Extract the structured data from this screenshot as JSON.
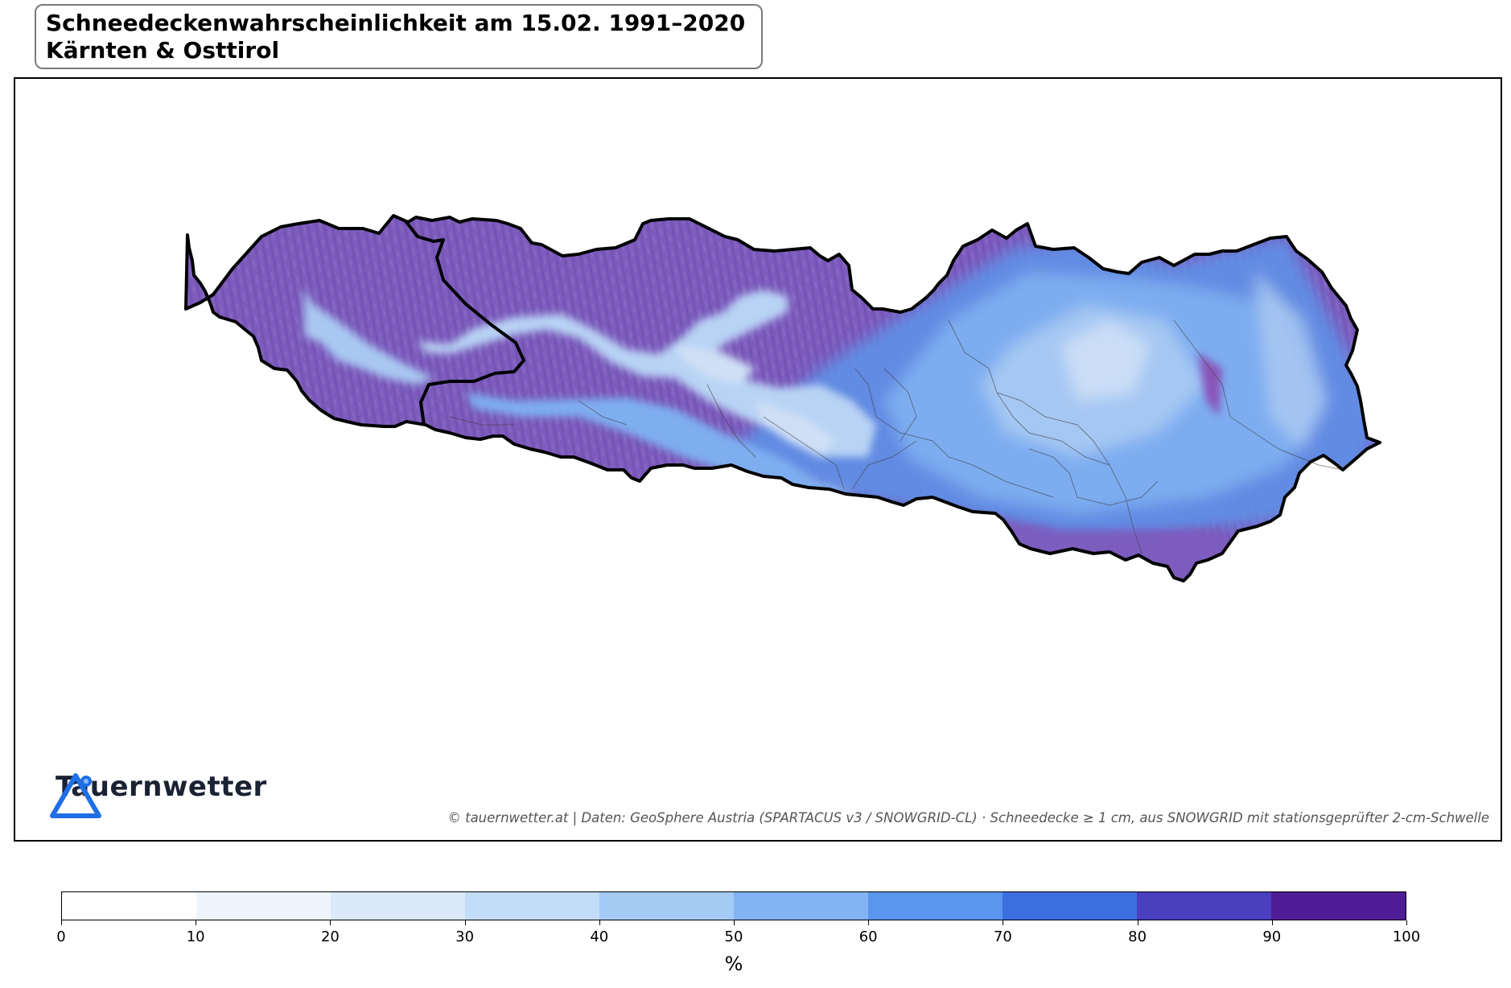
{
  "title": {
    "line1": "Schneedeckenwahrscheinlichkeit am 15.02. 1991–2020",
    "line2": "Kärnten & Osttirol"
  },
  "logo": {
    "text": "Tauernwetter",
    "icon": "triangle-pin-icon",
    "color": "#1f6fe6"
  },
  "credit": "© tauernwetter.at | Daten: GeoSphere Austria (SPARTACUS v3 / SNOWGRID-CL) · Schneedecke ≥ 1 cm, aus SNOWGRID mit stationsgeprüfter 2-cm-Schwelle",
  "colorbar": {
    "unit_label": "%",
    "ticks": [
      "0",
      "10",
      "20",
      "30",
      "40",
      "50",
      "60",
      "70",
      "80",
      "90",
      "100"
    ],
    "colors": [
      "#ffffff",
      "#eef5fd",
      "#dce9f9",
      "#c3dcf7",
      "#a5cbf5",
      "#83b3f2",
      "#5b96ee",
      "#3b6fe0",
      "#4a3fbf",
      "#4f1c95"
    ]
  },
  "map": {
    "region": "Kärnten & Osttirol",
    "colors": {
      "high": "#7d5cbd",
      "mid": "#5f8fe6",
      "low": "#a8c8f2",
      "valley": "#cfe0f6",
      "border": "#000000",
      "district": "#555555"
    }
  }
}
